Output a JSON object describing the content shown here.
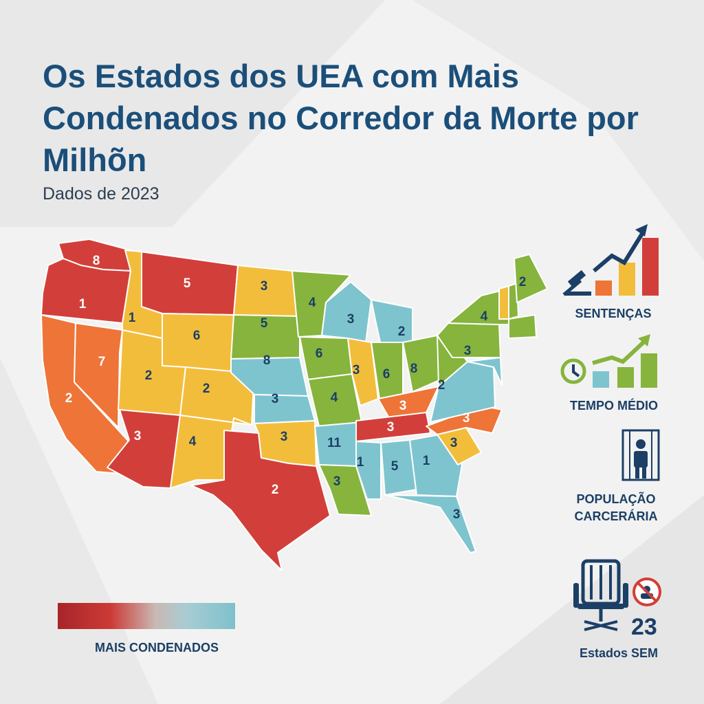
{
  "title": "Os Estados dos UEA com Mais Condenados no Corredor da Morte por Milhõn",
  "subtitle": "Dados de 2023",
  "colors": {
    "red": "#d23f3a",
    "orange": "#ee7438",
    "yellow": "#f3bd3c",
    "green": "#86b43d",
    "blue": "#7ec4cf",
    "navy": "#1b3f66"
  },
  "states": [
    {
      "code": "WA",
      "label": "8",
      "color": "red"
    },
    {
      "code": "OR",
      "label": "1",
      "color": "red"
    },
    {
      "code": "CA",
      "label": "2",
      "color": "orange"
    },
    {
      "code": "NV",
      "label": "7",
      "color": "orange"
    },
    {
      "code": "ID",
      "label": "1",
      "color": "yellow"
    },
    {
      "code": "MT",
      "label": "5",
      "color": "red"
    },
    {
      "code": "WY",
      "label": "6",
      "color": "yellow"
    },
    {
      "code": "UT",
      "label": "2",
      "color": "yellow"
    },
    {
      "code": "CO",
      "label": "2",
      "color": "yellow"
    },
    {
      "code": "AZ",
      "label": "3",
      "color": "red"
    },
    {
      "code": "NM",
      "label": "4",
      "color": "yellow"
    },
    {
      "code": "ND",
      "label": "3",
      "color": "yellow"
    },
    {
      "code": "SD",
      "label": "5",
      "color": "green"
    },
    {
      "code": "NE",
      "label": "8",
      "color": "blue"
    },
    {
      "code": "KS",
      "label": "3",
      "color": "blue"
    },
    {
      "code": "OK",
      "label": "3",
      "color": "yellow"
    },
    {
      "code": "TX",
      "label": "2",
      "color": "red"
    },
    {
      "code": "MN",
      "label": "4",
      "color": "green"
    },
    {
      "code": "IA",
      "label": "6",
      "color": "green"
    },
    {
      "code": "MO",
      "label": "4",
      "color": "green"
    },
    {
      "code": "AR",
      "label": "11",
      "color": "blue"
    },
    {
      "code": "LA",
      "label": "3",
      "color": "green"
    },
    {
      "code": "WI",
      "label": "3",
      "color": "blue"
    },
    {
      "code": "IL",
      "label": "3",
      "color": "yellow"
    },
    {
      "code": "MI",
      "label": "2",
      "color": "blue"
    },
    {
      "code": "IN",
      "label": "6",
      "color": "green"
    },
    {
      "code": "OH",
      "label": "8",
      "color": "green"
    },
    {
      "code": "KY",
      "label": "3",
      "color": "orange"
    },
    {
      "code": "TN",
      "label": "3",
      "color": "red"
    },
    {
      "code": "MS",
      "label": "1",
      "color": "blue"
    },
    {
      "code": "AL",
      "label": "5",
      "color": "blue"
    },
    {
      "code": "GA",
      "label": "1",
      "color": "blue"
    },
    {
      "code": "FL",
      "label": "3",
      "color": "blue"
    },
    {
      "code": "SC",
      "label": "3",
      "color": "yellow"
    },
    {
      "code": "NC",
      "label": "3",
      "color": "orange"
    },
    {
      "code": "VA",
      "label": "2",
      "color": "blue"
    },
    {
      "code": "WV",
      "label": "",
      "color": "green"
    },
    {
      "code": "PA",
      "label": "3",
      "color": "green"
    },
    {
      "code": "NY",
      "label": "4",
      "color": "green"
    },
    {
      "code": "VT",
      "label": "",
      "color": "yellow"
    },
    {
      "code": "NH",
      "label": "",
      "color": "green"
    },
    {
      "code": "ME",
      "label": "2",
      "color": "green"
    },
    {
      "code": "NE_SMALL",
      "label": "",
      "color": "green"
    },
    {
      "code": "MD_DE",
      "label": "",
      "color": "blue"
    }
  ],
  "legend": {
    "label": "MAIS CONDENADOS"
  },
  "sidebar": {
    "sentencas": "SENTENÇAS",
    "tempo": "TEMPO MÉDIO",
    "populacao_line1": "POPULAÇÃO",
    "populacao_line2": "CARCERÁRIA",
    "count": "23",
    "estados_sem": "Estados SEM"
  }
}
